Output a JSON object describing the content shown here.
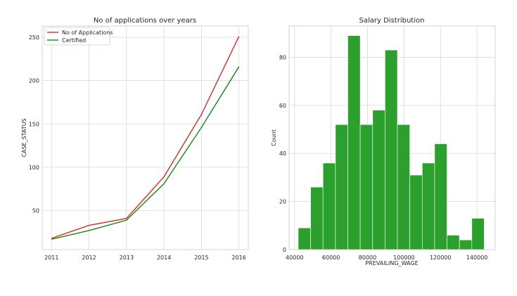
{
  "chart_data": [
    {
      "type": "line",
      "title": "No of applications over years",
      "xlabel": "",
      "ylabel": "CASE_STATUS",
      "categories": [
        "2011",
        "2012",
        "2013",
        "2014",
        "2015",
        "2016"
      ],
      "x": [
        2011,
        2012,
        2013,
        2014,
        2015,
        2016
      ],
      "xlim": [
        2010.75,
        2016.25
      ],
      "ylim": [
        5,
        263
      ],
      "yticks": [
        50,
        100,
        150,
        200,
        250
      ],
      "grid": true,
      "legend_position": "top-left",
      "series": [
        {
          "name": "No of Applications",
          "color": "#e41a1c",
          "values": [
            18,
            33,
            41,
            89,
            161,
            251
          ]
        },
        {
          "name": "Certified",
          "color": "#008000",
          "values": [
            17,
            27,
            39,
            81,
            146,
            216
          ]
        }
      ]
    },
    {
      "type": "bar",
      "subtype": "histogram",
      "title": "Salary Distribution",
      "xlabel": "PREVAILING_WAGE",
      "ylabel": "Count",
      "xlim": [
        37000,
        150000
      ],
      "ylim": [
        0,
        93
      ],
      "xticks": [
        40000,
        60000,
        80000,
        100000,
        120000,
        140000
      ],
      "yticks": [
        0,
        20,
        40,
        60,
        80
      ],
      "grid": true,
      "color": "#2ca02c",
      "bins": [
        {
          "start": 42000,
          "end": 48800,
          "count": 9
        },
        {
          "start": 48800,
          "end": 55600,
          "count": 26
        },
        {
          "start": 55600,
          "end": 62400,
          "count": 36
        },
        {
          "start": 62400,
          "end": 69200,
          "count": 52
        },
        {
          "start": 69200,
          "end": 76000,
          "count": 89
        },
        {
          "start": 76000,
          "end": 82800,
          "count": 52
        },
        {
          "start": 82800,
          "end": 89600,
          "count": 58
        },
        {
          "start": 89600,
          "end": 96400,
          "count": 83
        },
        {
          "start": 96400,
          "end": 103200,
          "count": 52
        },
        {
          "start": 103200,
          "end": 110000,
          "count": 31
        },
        {
          "start": 110000,
          "end": 116800,
          "count": 36
        },
        {
          "start": 116800,
          "end": 123600,
          "count": 44
        },
        {
          "start": 123600,
          "end": 130400,
          "count": 6
        },
        {
          "start": 130400,
          "end": 137200,
          "count": 4
        },
        {
          "start": 137200,
          "end": 144000,
          "count": 13
        }
      ]
    }
  ]
}
